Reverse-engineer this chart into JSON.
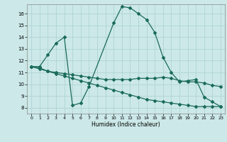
{
  "title": "",
  "xlabel": "Humidex (Indice chaleur)",
  "bg_color": "#cce8e8",
  "line_color": "#1a6b5a",
  "grid_color": "#aad0d0",
  "xlim": [
    -0.5,
    23.5
  ],
  "ylim": [
    7.5,
    16.8
  ],
  "xticks": [
    0,
    1,
    2,
    3,
    4,
    5,
    6,
    7,
    8,
    9,
    10,
    11,
    12,
    13,
    14,
    15,
    16,
    17,
    18,
    19,
    20,
    21,
    22,
    23
  ],
  "yticks": [
    8,
    9,
    10,
    11,
    12,
    13,
    14,
    15,
    16
  ],
  "line1_x": [
    0,
    1,
    2,
    3,
    4,
    5,
    6,
    7,
    10,
    11,
    12,
    13,
    14,
    15,
    16,
    17,
    18,
    19,
    20,
    21,
    22,
    23
  ],
  "line1_y": [
    11.5,
    11.5,
    12.5,
    13.5,
    14.0,
    8.2,
    8.4,
    9.8,
    15.2,
    16.6,
    16.5,
    16.0,
    15.5,
    14.4,
    12.3,
    11.0,
    10.2,
    10.3,
    10.4,
    8.9,
    8.5,
    8.1
  ],
  "line2_x": [
    0,
    1,
    2,
    3,
    4,
    5,
    6,
    7,
    8,
    9,
    10,
    11,
    12,
    13,
    14,
    15,
    16,
    17,
    18,
    19,
    20,
    21,
    22,
    23
  ],
  "line2_y": [
    11.5,
    11.4,
    11.1,
    11.0,
    10.9,
    10.8,
    10.7,
    10.6,
    10.5,
    10.4,
    10.4,
    10.4,
    10.4,
    10.5,
    10.5,
    10.5,
    10.6,
    10.5,
    10.3,
    10.2,
    10.2,
    10.1,
    9.9,
    9.8
  ],
  "line3_x": [
    0,
    1,
    2,
    3,
    4,
    5,
    6,
    7,
    8,
    9,
    10,
    11,
    12,
    13,
    14,
    15,
    16,
    17,
    18,
    19,
    20,
    21,
    22,
    23
  ],
  "line3_y": [
    11.5,
    11.3,
    11.1,
    10.9,
    10.7,
    10.5,
    10.3,
    10.1,
    9.9,
    9.7,
    9.5,
    9.3,
    9.1,
    8.9,
    8.7,
    8.6,
    8.5,
    8.4,
    8.3,
    8.2,
    8.1,
    8.1,
    8.1,
    8.1
  ]
}
